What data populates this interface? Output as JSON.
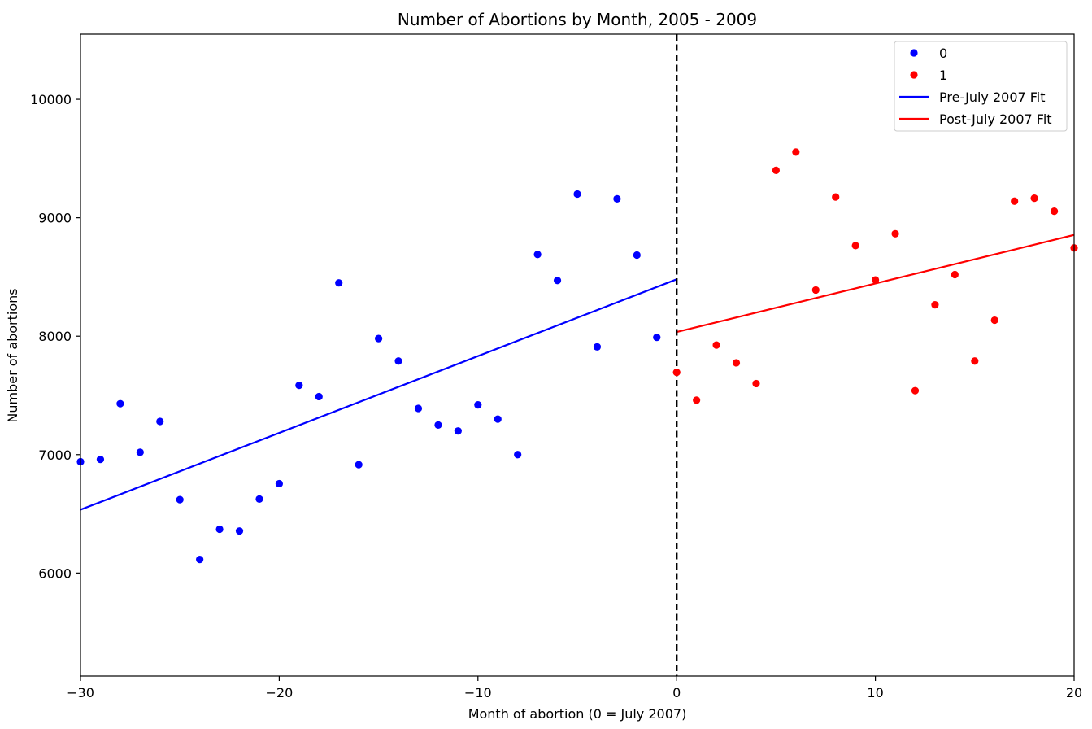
{
  "chart_data": {
    "type": "scatter",
    "title": "Number of Abortions by Month, 2005 - 2009",
    "xlabel": "Month of abortion (0 = July 2007)",
    "ylabel": "Number of abortions",
    "xlim": [
      -30,
      20
    ],
    "ylim": [
      5130,
      10550
    ],
    "xticks": [
      -30,
      -20,
      -10,
      0,
      10,
      20
    ],
    "yticks": [
      6000,
      7000,
      8000,
      9000,
      10000
    ],
    "grid": false,
    "legend": "top-right",
    "cutoff_x": 0,
    "series": [
      {
        "name": "0",
        "kind": "points",
        "color": "#0000ff",
        "points": [
          [
            -30,
            6940
          ],
          [
            -29,
            6960
          ],
          [
            -28,
            7430
          ],
          [
            -27,
            7020
          ],
          [
            -26,
            7280
          ],
          [
            -25,
            6620
          ],
          [
            -24,
            6115
          ],
          [
            -23,
            6370
          ],
          [
            -22,
            6355
          ],
          [
            -21,
            6625
          ],
          [
            -20,
            6755
          ],
          [
            -19,
            7585
          ],
          [
            -18,
            7490
          ],
          [
            -17,
            8450
          ],
          [
            -16,
            6915
          ],
          [
            -15,
            7980
          ],
          [
            -14,
            7790
          ],
          [
            -13,
            7390
          ],
          [
            -12,
            7250
          ],
          [
            -11,
            7200
          ],
          [
            -10,
            7420
          ],
          [
            -9,
            7300
          ],
          [
            -8,
            7000
          ],
          [
            -7,
            8690
          ],
          [
            -6,
            8470
          ],
          [
            -5,
            9200
          ],
          [
            -4,
            7910
          ],
          [
            -3,
            9160
          ],
          [
            -2,
            8685
          ],
          [
            -1,
            7990
          ]
        ]
      },
      {
        "name": "1",
        "kind": "points",
        "color": "#ff0000",
        "points": [
          [
            0,
            7695
          ],
          [
            1,
            7460
          ],
          [
            2,
            7925
          ],
          [
            3,
            7775
          ],
          [
            4,
            7600
          ],
          [
            5,
            9400
          ],
          [
            6,
            9555
          ],
          [
            7,
            8390
          ],
          [
            8,
            9175
          ],
          [
            9,
            8765
          ],
          [
            10,
            8475
          ],
          [
            11,
            8865
          ],
          [
            12,
            7540
          ],
          [
            13,
            8265
          ],
          [
            14,
            8520
          ],
          [
            15,
            7790
          ],
          [
            16,
            8135
          ],
          [
            17,
            9140
          ],
          [
            18,
            9165
          ],
          [
            19,
            9055
          ],
          [
            20,
            8745
          ]
        ]
      },
      {
        "name": "Pre-July 2007 Fit",
        "kind": "line",
        "color": "#0000ff",
        "points": [
          [
            -30,
            6535
          ],
          [
            0,
            8480
          ]
        ]
      },
      {
        "name": "Post-July 2007 Fit",
        "kind": "line",
        "color": "#ff0000",
        "points": [
          [
            0,
            8035
          ],
          [
            20,
            8855
          ]
        ]
      }
    ]
  }
}
